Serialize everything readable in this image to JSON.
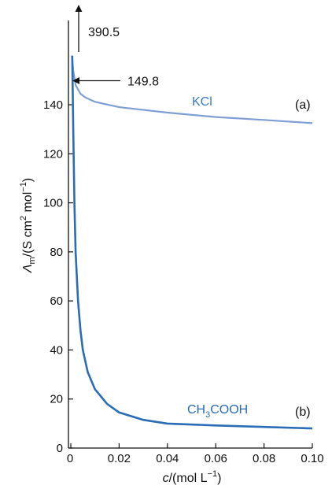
{
  "chart_data": {
    "type": "line",
    "title": "",
    "xlabel": {
      "italic": "c",
      "text": "/(mol L",
      "sup": "−1",
      "close": ")"
    },
    "ylabel": {
      "symbol": "Λ",
      "sub": "m",
      "text": "/(S cm",
      "sup1": "2",
      "mid": " mol",
      "sup2": "−1",
      "close": ")"
    },
    "xlim": [
      0,
      0.1
    ],
    "ylim": [
      0,
      150
    ],
    "x_ticks": [
      "0",
      "0.02",
      "0.04",
      "0.06",
      "0.08",
      "0.10"
    ],
    "x_tick_values": [
      0,
      0.02,
      0.04,
      0.06,
      0.08,
      0.1
    ],
    "y_ticks": [
      "0",
      "20",
      "40",
      "60",
      "80",
      "100",
      "120",
      "140"
    ],
    "y_tick_values": [
      0,
      20,
      40,
      60,
      80,
      100,
      120,
      140
    ],
    "grid": false,
    "series": [
      {
        "name": "KCl",
        "tag": "(a)",
        "color": "#7f9fd4",
        "points": [
          [
            0.0005,
            160
          ],
          [
            0.001,
            154
          ],
          [
            0.002,
            148
          ],
          [
            0.004,
            144.5
          ],
          [
            0.006,
            143
          ],
          [
            0.01,
            141.2
          ],
          [
            0.02,
            139
          ],
          [
            0.04,
            136.8
          ],
          [
            0.06,
            135
          ],
          [
            0.08,
            133.8
          ],
          [
            0.1,
            132.5
          ]
        ]
      },
      {
        "name": "CH3COOH",
        "name_parts": {
          "a": "CH",
          "sub": "3",
          "b": "COOH"
        },
        "tag": "(b)",
        "color": "#2a6cb6",
        "points": [
          [
            0.0006,
            160
          ],
          [
            0.001,
            130
          ],
          [
            0.0015,
            100
          ],
          [
            0.002,
            80
          ],
          [
            0.003,
            60
          ],
          [
            0.004,
            48
          ],
          [
            0.005,
            40
          ],
          [
            0.007,
            31
          ],
          [
            0.01,
            24
          ],
          [
            0.015,
            18
          ],
          [
            0.02,
            14.5
          ],
          [
            0.03,
            11.5
          ],
          [
            0.04,
            10
          ],
          [
            0.06,
            9.2
          ],
          [
            0.08,
            8.6
          ],
          [
            0.1,
            8
          ]
        ]
      }
    ],
    "annotations": [
      {
        "text": "390.5",
        "meaning": "limiting molar conductivity of CH3COOH (off-scale, arrow)"
      },
      {
        "text": "149.8",
        "meaning": "limiting molar conductivity of KCl",
        "value": 149.8
      }
    ]
  }
}
